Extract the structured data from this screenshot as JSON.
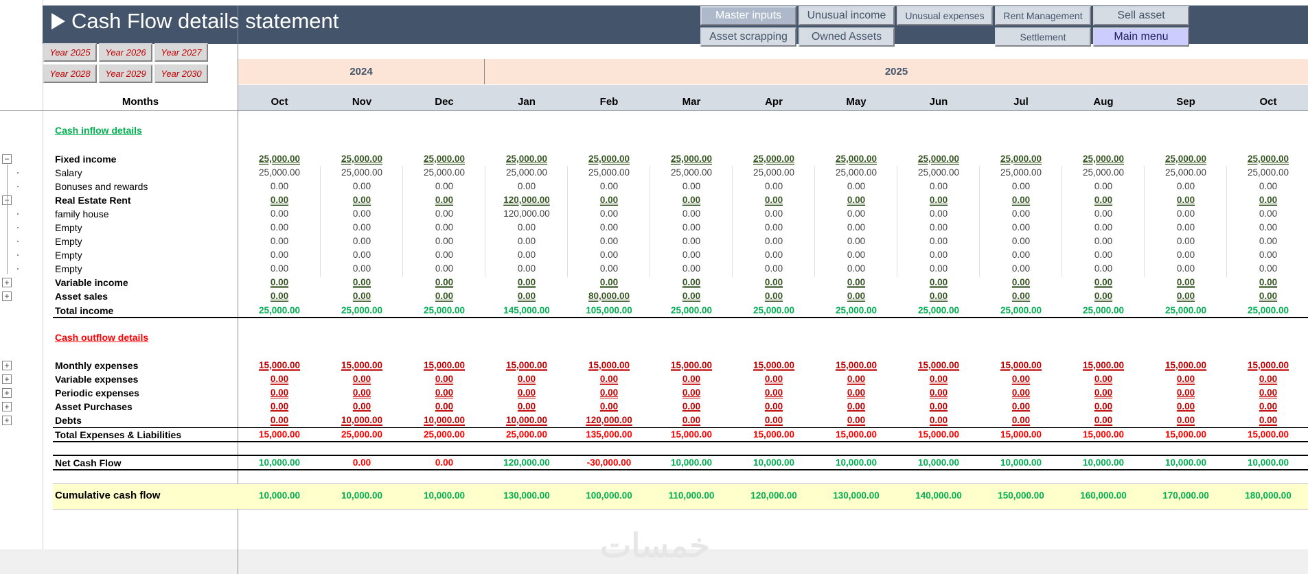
{
  "title": "Cash Flow details statement",
  "nav_buttons": [
    {
      "label": "Master inputs",
      "style": "highlight"
    },
    {
      "label": "Unusual income",
      "style": "normal"
    },
    {
      "label": "Unusual expenses",
      "style": "small"
    },
    {
      "label": "Rent Management",
      "style": "small"
    },
    {
      "label": "Sell asset",
      "style": "normal"
    },
    {
      "label": "Asset scrapping",
      "style": "normal"
    },
    {
      "label": "Owned Assets",
      "style": "normal"
    },
    {
      "label": "Settlement",
      "style": "small"
    },
    {
      "label": "Main menu",
      "style": "accent"
    }
  ],
  "year_buttons": [
    "Year 2025",
    "Year 2026",
    "Year 2027",
    "Year 2028",
    "Year 2029",
    "Year 2030"
  ],
  "years": [
    "2024",
    "2025"
  ],
  "months_label": "Months",
  "months": [
    "Oct",
    "Nov",
    "Dec",
    "Jan",
    "Feb",
    "Mar",
    "Apr",
    "May",
    "Jun",
    "Jul",
    "Aug",
    "Sep",
    "Oct"
  ],
  "inflow_title": "Cash inflow details",
  "outflow_title": "Cash outflow details",
  "rows": [
    {
      "label": "Fixed income",
      "bold": true,
      "color": "dgreen",
      "underline": true,
      "outline": "minus",
      "values": [
        "25,000.00",
        "25,000.00",
        "25,000.00",
        "25,000.00",
        "25,000.00",
        "25,000.00",
        "25,000.00",
        "25,000.00",
        "25,000.00",
        "25,000.00",
        "25,000.00",
        "25,000.00",
        "25,000.00"
      ]
    },
    {
      "label": "Salary",
      "bold": false,
      "color": "grey",
      "underline": false,
      "outline": "dot",
      "values": [
        "25,000.00",
        "25,000.00",
        "25,000.00",
        "25,000.00",
        "25,000.00",
        "25,000.00",
        "25,000.00",
        "25,000.00",
        "25,000.00",
        "25,000.00",
        "25,000.00",
        "25,000.00",
        "25,000.00"
      ]
    },
    {
      "label": "Bonuses and rewards",
      "bold": false,
      "color": "grey",
      "underline": false,
      "outline": "dot",
      "values": [
        "0.00",
        "0.00",
        "0.00",
        "0.00",
        "0.00",
        "0.00",
        "0.00",
        "0.00",
        "0.00",
        "0.00",
        "0.00",
        "0.00",
        "0.00"
      ]
    },
    {
      "label": "Real Estate Rent",
      "bold": true,
      "color": "dgreen",
      "underline": true,
      "outline": "minus",
      "values": [
        "0.00",
        "0.00",
        "0.00",
        "120,000.00",
        "0.00",
        "0.00",
        "0.00",
        "0.00",
        "0.00",
        "0.00",
        "0.00",
        "0.00",
        "0.00"
      ]
    },
    {
      "label": "family house",
      "bold": false,
      "color": "grey",
      "underline": false,
      "outline": "dot",
      "values": [
        "0.00",
        "0.00",
        "0.00",
        "120,000.00",
        "0.00",
        "0.00",
        "0.00",
        "0.00",
        "0.00",
        "0.00",
        "0.00",
        "0.00",
        "0.00"
      ]
    },
    {
      "label": "Empty",
      "bold": false,
      "color": "grey",
      "underline": false,
      "outline": "dot",
      "values": [
        "0.00",
        "0.00",
        "0.00",
        "0.00",
        "0.00",
        "0.00",
        "0.00",
        "0.00",
        "0.00",
        "0.00",
        "0.00",
        "0.00",
        "0.00"
      ]
    },
    {
      "label": "Empty",
      "bold": false,
      "color": "grey",
      "underline": false,
      "outline": "dot",
      "values": [
        "0.00",
        "0.00",
        "0.00",
        "0.00",
        "0.00",
        "0.00",
        "0.00",
        "0.00",
        "0.00",
        "0.00",
        "0.00",
        "0.00",
        "0.00"
      ]
    },
    {
      "label": "Empty",
      "bold": false,
      "color": "grey",
      "underline": false,
      "outline": "dot",
      "values": [
        "0.00",
        "0.00",
        "0.00",
        "0.00",
        "0.00",
        "0.00",
        "0.00",
        "0.00",
        "0.00",
        "0.00",
        "0.00",
        "0.00",
        "0.00"
      ]
    },
    {
      "label": "Empty",
      "bold": false,
      "color": "grey",
      "underline": false,
      "outline": "dot",
      "values": [
        "0.00",
        "0.00",
        "0.00",
        "0.00",
        "0.00",
        "0.00",
        "0.00",
        "0.00",
        "0.00",
        "0.00",
        "0.00",
        "0.00",
        "0.00"
      ]
    },
    {
      "label": "Variable income",
      "bold": true,
      "color": "dgreen",
      "underline": true,
      "outline": "plus",
      "values": [
        "0.00",
        "0.00",
        "0.00",
        "0.00",
        "0.00",
        "0.00",
        "0.00",
        "0.00",
        "0.00",
        "0.00",
        "0.00",
        "0.00",
        "0.00"
      ]
    },
    {
      "label": "Asset sales",
      "bold": true,
      "color": "dgreen",
      "underline": true,
      "outline": "plus",
      "values": [
        "0.00",
        "0.00",
        "0.00",
        "0.00",
        "80,000.00",
        "0.00",
        "0.00",
        "0.00",
        "0.00",
        "0.00",
        "0.00",
        "0.00",
        "0.00"
      ]
    },
    {
      "label": "Total income",
      "bold": true,
      "color": "green",
      "underline": false,
      "outline": "none",
      "values": [
        "25,000.00",
        "25,000.00",
        "25,000.00",
        "145,000.00",
        "105,000.00",
        "25,000.00",
        "25,000.00",
        "25,000.00",
        "25,000.00",
        "25,000.00",
        "25,000.00",
        "25,000.00",
        "25,000.00"
      ]
    }
  ],
  "outflow_rows": [
    {
      "label": "Monthly expenses",
      "bold": true,
      "color": "dred",
      "underline": true,
      "outline": "plus",
      "values": [
        "15,000.00",
        "15,000.00",
        "15,000.00",
        "15,000.00",
        "15,000.00",
        "15,000.00",
        "15,000.00",
        "15,000.00",
        "15,000.00",
        "15,000.00",
        "15,000.00",
        "15,000.00",
        "15,000.00"
      ]
    },
    {
      "label": "Variable expenses",
      "bold": true,
      "color": "dred",
      "underline": true,
      "outline": "plus",
      "values": [
        "0.00",
        "0.00",
        "0.00",
        "0.00",
        "0.00",
        "0.00",
        "0.00",
        "0.00",
        "0.00",
        "0.00",
        "0.00",
        "0.00",
        "0.00"
      ]
    },
    {
      "label": "Periodic expenses",
      "bold": true,
      "color": "dred",
      "underline": true,
      "outline": "plus",
      "values": [
        "0.00",
        "0.00",
        "0.00",
        "0.00",
        "0.00",
        "0.00",
        "0.00",
        "0.00",
        "0.00",
        "0.00",
        "0.00",
        "0.00",
        "0.00"
      ]
    },
    {
      "label": "Asset Purchases",
      "bold": true,
      "color": "dred",
      "underline": true,
      "outline": "plus",
      "values": [
        "0.00",
        "0.00",
        "0.00",
        "0.00",
        "0.00",
        "0.00",
        "0.00",
        "0.00",
        "0.00",
        "0.00",
        "0.00",
        "0.00",
        "0.00"
      ]
    },
    {
      "label": "Debts",
      "bold": true,
      "color": "dred",
      "underline": true,
      "outline": "plus",
      "values": [
        "0.00",
        "10,000.00",
        "10,000.00",
        "10,000.00",
        "120,000.00",
        "0.00",
        "0.00",
        "0.00",
        "0.00",
        "0.00",
        "0.00",
        "0.00",
        "0.00"
      ]
    },
    {
      "label": "Total Expenses & Liabilities",
      "bold": true,
      "color": "red",
      "underline": false,
      "outline": "none",
      "values": [
        "15,000.00",
        "25,000.00",
        "25,000.00",
        "25,000.00",
        "135,000.00",
        "15,000.00",
        "15,000.00",
        "15,000.00",
        "15,000.00",
        "15,000.00",
        "15,000.00",
        "15,000.00",
        "15,000.00"
      ]
    }
  ],
  "net_cash_flow": {
    "label": "Net Cash Flow",
    "values": [
      "10,000.00",
      "0.00",
      "0.00",
      "120,000.00",
      "-30,000.00",
      "10,000.00",
      "10,000.00",
      "10,000.00",
      "10,000.00",
      "10,000.00",
      "10,000.00",
      "10,000.00",
      "10,000.00"
    ],
    "colors": [
      "green",
      "red",
      "red",
      "green",
      "red",
      "green",
      "green",
      "green",
      "green",
      "green",
      "green",
      "green",
      "green"
    ]
  },
  "cumulative": {
    "label": "Cumulative cash flow",
    "values": [
      "10,000.00",
      "10,000.00",
      "10,000.00",
      "130,000.00",
      "100,000.00",
      "110,000.00",
      "120,000.00",
      "130,000.00",
      "140,000.00",
      "150,000.00",
      "160,000.00",
      "170,000.00",
      "180,000.00"
    ]
  },
  "watermark": "خمسات",
  "colors": {
    "header": "#44546a",
    "peach": "#fce4d6",
    "months_band": "#d6dce4",
    "cumulative_band": "#ffffcc",
    "income_green": "#00b050",
    "expense_red": "#c00000"
  }
}
